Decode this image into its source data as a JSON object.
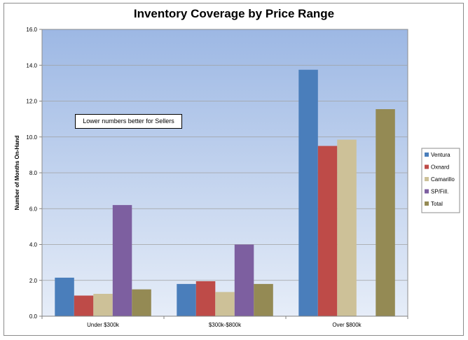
{
  "chart_data": {
    "type": "bar",
    "title": "Inventory Coverage by Price Range",
    "xlabel": "",
    "ylabel": "Number of Months On-Hand",
    "ylim": [
      0,
      16
    ],
    "yticks": [
      "0.0",
      "2.0",
      "4.0",
      "6.0",
      "8.0",
      "10.0",
      "12.0",
      "14.0",
      "16.0"
    ],
    "grid": true,
    "legend_position": "right",
    "categories": [
      "Under $300k",
      "$300k-$800k",
      "Over $800k"
    ],
    "series": [
      {
        "name": "Ventura",
        "color": "#4a7ebb",
        "values": [
          2.15,
          1.8,
          13.75
        ]
      },
      {
        "name": "Oxnard",
        "color": "#be4b48",
        "values": [
          1.15,
          1.95,
          9.5
        ]
      },
      {
        "name": "Camarillo",
        "color": "#cdc198",
        "values": [
          1.25,
          1.35,
          9.85
        ]
      },
      {
        "name": "SP/Fill.",
        "color": "#7d5fa0",
        "values": [
          6.2,
          4.0,
          0
        ]
      },
      {
        "name": "Total",
        "color": "#948a54",
        "values": [
          1.5,
          1.8,
          11.55
        ]
      }
    ],
    "annotation": "Lower numbers better for Sellers"
  }
}
